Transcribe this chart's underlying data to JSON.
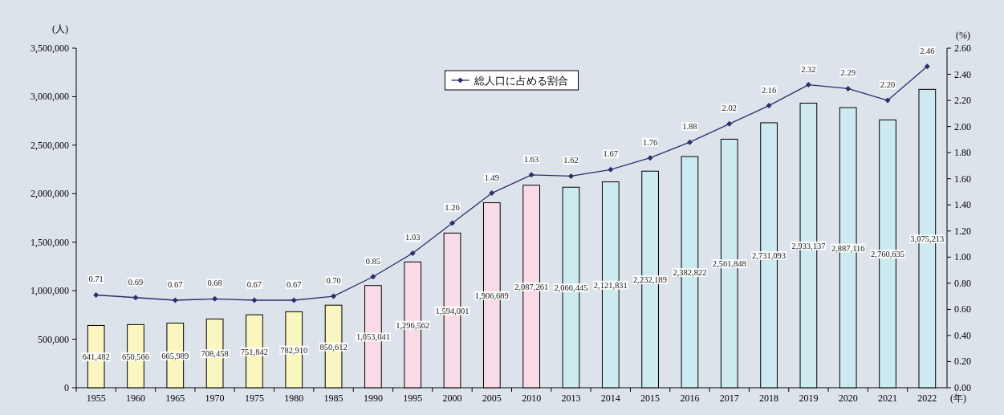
{
  "chart_data": {
    "type": "bar",
    "xlabel": "(年)",
    "ylabel": "(人)",
    "y2label": "(%)",
    "legend": "top",
    "categories": [
      "1955",
      "1960",
      "1965",
      "1970",
      "1975",
      "1980",
      "1985",
      "1990",
      "1995",
      "2000",
      "2005",
      "2010",
      "2013",
      "2014",
      "2015",
      "2016",
      "2017",
      "2018",
      "2019",
      "2020",
      "2021",
      "2022"
    ],
    "ylim": [
      0,
      3500000
    ],
    "yticks": [
      {
        "value": 0,
        "label": "0"
      },
      {
        "value": 500000,
        "label": "500,000"
      },
      {
        "value": 1000000,
        "label": "1,000,000"
      },
      {
        "value": 1500000,
        "label": "1,500,000"
      },
      {
        "value": 2000000,
        "label": "2,000,000"
      },
      {
        "value": 2500000,
        "label": "2,500,000"
      },
      {
        "value": 3000000,
        "label": "3,000,000"
      },
      {
        "value": 3500000,
        "label": "3,500,000"
      }
    ],
    "y2lim": [
      0,
      2.6
    ],
    "y2ticks": [
      {
        "value": 0,
        "label": "0.00"
      },
      {
        "value": 0.2,
        "label": "0.20"
      },
      {
        "value": 0.4,
        "label": "0.40"
      },
      {
        "value": 0.6,
        "label": "0.60"
      },
      {
        "value": 0.8,
        "label": "0.80"
      },
      {
        "value": 1,
        "label": "1.00"
      },
      {
        "value": 1.2,
        "label": "1.20"
      },
      {
        "value": 1.4,
        "label": "1.40"
      },
      {
        "value": 1.6,
        "label": "1.60"
      },
      {
        "value": 1.8,
        "label": "1.80"
      },
      {
        "value": 2,
        "label": "2.00"
      },
      {
        "value": 2.2,
        "label": "2.20"
      },
      {
        "value": 2.4,
        "label": "2.40"
      },
      {
        "value": 2.6,
        "label": "2.60"
      }
    ],
    "series": [
      {
        "colors": [
          "#faf6bf",
          "#faf6bf",
          "#faf6bf",
          "#faf6bf",
          "#faf6bf",
          "#faf6bf",
          "#faf6bf",
          "#f9dbe8",
          "#f9dbe8",
          "#f9dbe8",
          "#f9dbe8",
          "#f9dbe8",
          "#cdeaf0",
          "#cdeaf0",
          "#cdeaf0",
          "#cdeaf0",
          "#cdeaf0",
          "#cdeaf0",
          "#cdeaf0",
          "#cdeaf0",
          "#cdeaf0",
          "#cdeaf0"
        ],
        "values": [
          641482,
          650566,
          665989,
          708458,
          751842,
          782910,
          850612,
          1053041,
          1296562,
          1594001,
          1906689,
          2087261,
          2066445,
          2121831,
          2232189,
          2382822,
          2561848,
          2731093,
          2933137,
          2887116,
          2760635,
          3075213
        ],
        "value_labels": [
          "641,482",
          "650,566",
          "665,989",
          "708,458",
          "751,842",
          "782,910",
          "850,612",
          "1,053,041",
          "1,296,562",
          "1,594,001",
          "1,906,689",
          "2,087,261",
          "2,066,445",
          "2,121,831",
          "2,232,189",
          "2,382,822",
          "2,561,848",
          "2,731,093",
          "2,933,137",
          "2,887,116",
          "2,760,635",
          "3,075,213"
        ]
      },
      {
        "type": "line",
        "name": "総人口に占める割合",
        "axis": "y2",
        "color": "#2b2f6b",
        "marker": "diamond",
        "values": [
          0.71,
          0.69,
          0.67,
          0.68,
          0.67,
          0.67,
          0.7,
          0.85,
          1.03,
          1.26,
          1.49,
          1.63,
          1.62,
          1.67,
          1.76,
          1.88,
          2.02,
          2.16,
          2.32,
          2.29,
          2.2,
          2.46
        ],
        "value_labels": [
          "0.71",
          "0.69",
          "0.67",
          "0.68",
          "0.67",
          "0.67",
          "0.70",
          "0.85",
          "1.03",
          "1.26",
          "1.49",
          "1.63",
          "1.62",
          "1.67",
          "1.76",
          "1.88",
          "2.02",
          "2.16",
          "2.32",
          "2.29",
          "2.20",
          "2.46"
        ]
      }
    ]
  }
}
